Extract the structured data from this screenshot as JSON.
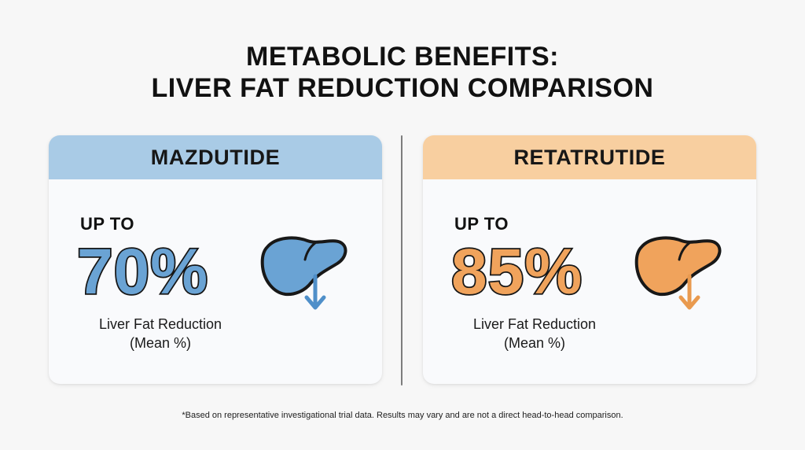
{
  "title": {
    "line1": "METABOLIC BENEFITS:",
    "line2": "LIVER FAT REDUCTION COMPARISON"
  },
  "cards": [
    {
      "name": "MAZDUTIDE",
      "prefix": "UP TO",
      "value": "70%",
      "metric_line1": "Liver Fat Reduction",
      "metric_line2": "(Mean %)",
      "header_color": "#a9cbe6",
      "accent_color": "#6aa3d4",
      "icon": "liver-down-arrow-icon"
    },
    {
      "name": "RETATRUTIDE",
      "prefix": "UP TO",
      "value": "85%",
      "metric_line1": "Liver Fat Reduction",
      "metric_line2": "(Mean %)",
      "header_color": "#f8cfa0",
      "accent_color": "#f0a35c",
      "icon": "liver-down-arrow-icon"
    }
  ],
  "footnote": "*Based on representative investigational trial data. Results may vary and are not a direct head-to-head comparison."
}
